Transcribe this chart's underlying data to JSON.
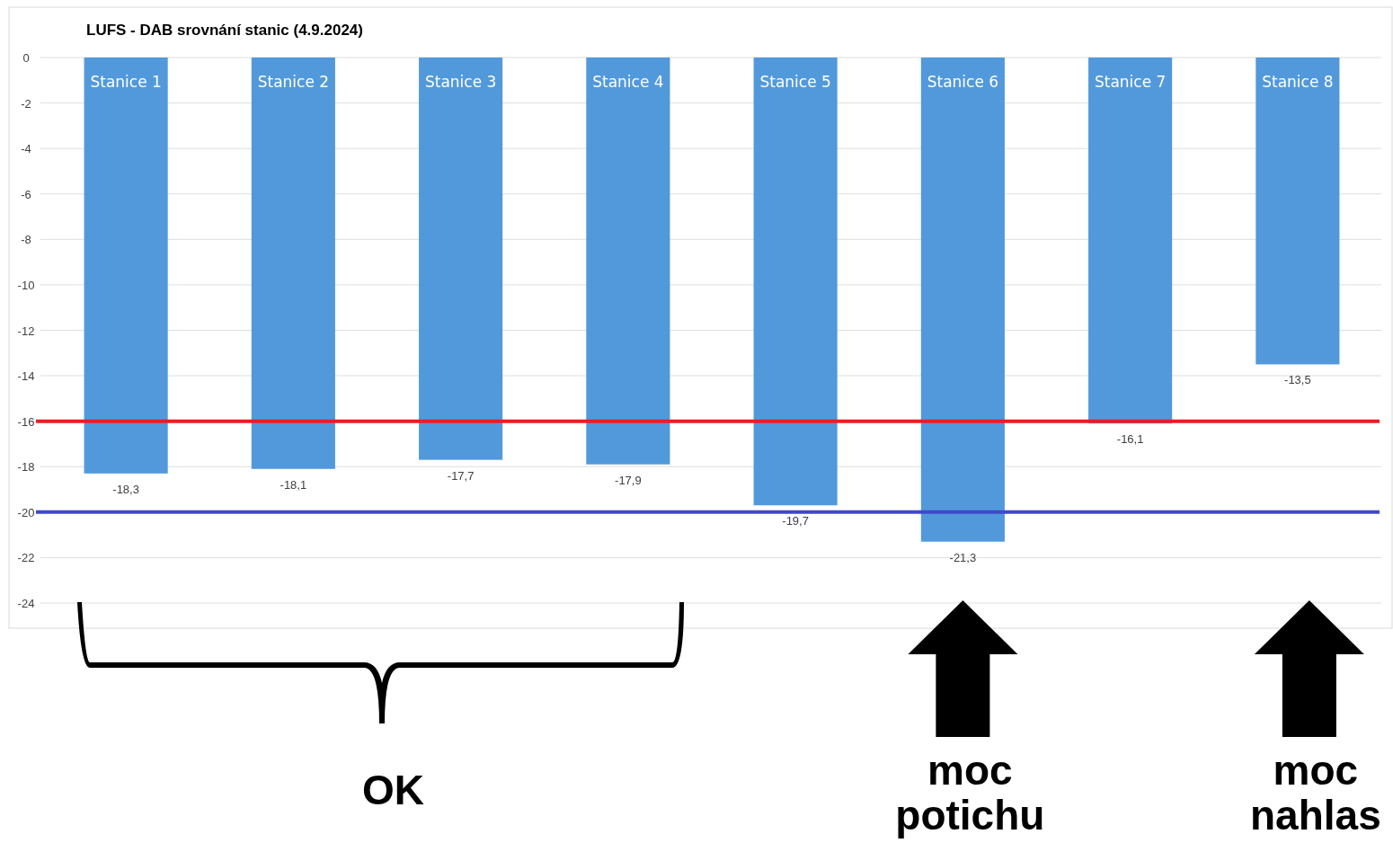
{
  "chart_data": {
    "type": "bar",
    "title": "LUFS - DAB srovnání stanic (4.9.2024)",
    "categories": [
      "Stanice 1",
      "Stanice 2",
      "Stanice 3",
      "Stanice 4",
      "Stanice 5",
      "Stanice 6",
      "Stanice 7",
      "Stanice 8"
    ],
    "values": [
      -18.3,
      -18.1,
      -17.7,
      -17.9,
      -19.7,
      -21.3,
      -16.1,
      -13.5
    ],
    "value_labels": [
      "-18,3",
      "-18,1",
      "-17,7",
      "-17,9",
      "-19,7",
      "-21,3",
      "-16,1",
      "-13,5"
    ],
    "color": "#5299dc",
    "ylim": [
      -24,
      0
    ],
    "yticks": [
      0,
      -2,
      -4,
      -6,
      -8,
      -10,
      -12,
      -14,
      -16,
      -18,
      -20,
      -22,
      -24
    ],
    "grid": "y",
    "ref_lines": [
      {
        "axis": "y",
        "value": -16,
        "color": "#ec1c24"
      },
      {
        "axis": "y",
        "value": -20,
        "color": "#3f48cc"
      }
    ],
    "annotations": [
      "OK",
      "moc potichu",
      "moc nahlas"
    ]
  }
}
